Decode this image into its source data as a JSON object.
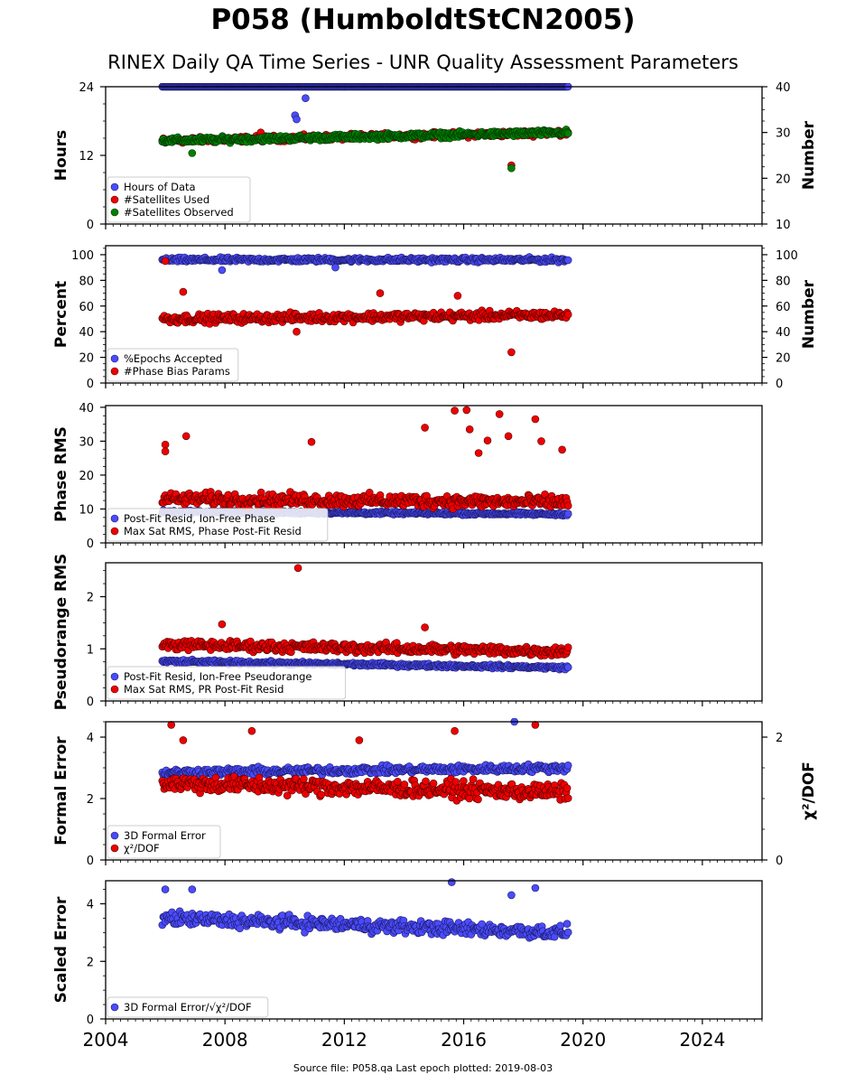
{
  "header": {
    "title": "P058 (HumboldtStCN2005)",
    "subtitle": "RINEX Daily QA Time Series - UNR Quality Assessment Parameters"
  },
  "footer": {
    "source": "Source file: P058.qa Last epoch plotted: 2019-08-03"
  },
  "colors": {
    "blue": "#4b4bff",
    "red": "#ee0000",
    "green": "#008000"
  },
  "chart_data": [
    {
      "type": "scatter",
      "xlim": [
        2004,
        2026
      ],
      "x_ticks": [
        2004,
        2008,
        2012,
        2016,
        2020,
        2024
      ],
      "ylabel": "Hours",
      "ylim": [
        0,
        24
      ],
      "yticks": [
        0,
        12,
        24
      ],
      "ylabel_right": "Number",
      "ylim_right": [
        10,
        40
      ],
      "yticks_right": [
        10,
        20,
        30,
        40
      ],
      "legend_position": "lower-left",
      "series": [
        {
          "name": "Hours of Data",
          "color": "#4b4bff",
          "axis": "left",
          "bands": [
            {
              "x": [
                2005.9,
                2019.5
              ],
              "y": 24,
              "spread": 0
            }
          ],
          "outliers": [
            [
              2010.35,
              19.0
            ],
            [
              2010.4,
              18.3
            ],
            [
              2010.7,
              22.0
            ]
          ]
        },
        {
          "name": "#Satellites Used",
          "color": "#ee0000",
          "axis": "right",
          "bands": [
            {
              "x": [
                2005.9,
                2019.5
              ],
              "y_start": 28.2,
              "y_end": 30.0,
              "spread": 0.9
            }
          ],
          "outliers": [
            [
              2009.2,
              30.0
            ],
            [
              2017.6,
              22.8
            ]
          ]
        },
        {
          "name": "#Satellites Observed",
          "color": "#008000",
          "axis": "right",
          "bands": [
            {
              "x": [
                2005.9,
                2019.5
              ],
              "y_start": 28.2,
              "y_end": 30.0,
              "spread": 0.9
            }
          ],
          "outliers": [
            [
              2006.9,
              25.5
            ],
            [
              2017.6,
              22.2
            ]
          ]
        }
      ]
    },
    {
      "type": "scatter",
      "xlim": [
        2004,
        2026
      ],
      "x_ticks": [
        2004,
        2008,
        2012,
        2016,
        2020,
        2024
      ],
      "ylabel": "Percent",
      "ylim": [
        0,
        107
      ],
      "yticks": [
        0,
        20,
        40,
        60,
        80,
        100
      ],
      "ylabel_right": "Number",
      "ylim_right": [
        0,
        107
      ],
      "yticks_right": [
        0,
        20,
        40,
        60,
        80,
        100
      ],
      "legend_position": "lower-left",
      "series": [
        {
          "name": "%Epochs Accepted",
          "color": "#4b4bff",
          "axis": "left",
          "bands": [
            {
              "x": [
                2005.9,
                2019.5
              ],
              "y_start": 96,
              "y_end": 96,
              "spread": 2.5
            }
          ],
          "outliers": [
            [
              2007.9,
              88
            ],
            [
              2011.7,
              90
            ]
          ]
        },
        {
          "name": "#Phase Bias Params",
          "color": "#ee0000",
          "axis": "right",
          "bands": [
            {
              "x": [
                2005.9,
                2019.5
              ],
              "y_start": 50,
              "y_end": 53,
              "spread": 5
            }
          ],
          "outliers": [
            [
              2006.0,
              95
            ],
            [
              2006.6,
              71
            ],
            [
              2010.4,
              40
            ],
            [
              2013.2,
              70
            ],
            [
              2015.8,
              68
            ],
            [
              2017.6,
              24
            ]
          ]
        }
      ]
    },
    {
      "type": "scatter",
      "xlim": [
        2004,
        2026
      ],
      "x_ticks": [
        2004,
        2008,
        2012,
        2016,
        2020,
        2024
      ],
      "ylabel": "Phase RMS",
      "ylim": [
        0,
        40.5
      ],
      "yticks": [
        0,
        10,
        20,
        30,
        40
      ],
      "legend_position": "lower-left",
      "series": [
        {
          "name": "Post-Fit Resid, Ion-Free Phase",
          "color": "#4b4bff",
          "axis": "left",
          "bands": [
            {
              "x": [
                2005.9,
                2019.5
              ],
              "y_start": 9.2,
              "y_end": 8.5,
              "spread": 0.6
            }
          ],
          "outliers": []
        },
        {
          "name": "Max Sat RMS, Phase Post-Fit Resid",
          "color": "#ee0000",
          "axis": "left",
          "bands": [
            {
              "x": [
                2005.9,
                2019.5
              ],
              "y_start": 13,
              "y_end": 12,
              "spread": 2.8
            }
          ],
          "outliers": [
            [
              2006.0,
              29
            ],
            [
              2006.0,
              27
            ],
            [
              2006.7,
              31.5
            ],
            [
              2010.9,
              29.8
            ],
            [
              2014.7,
              34
            ],
            [
              2015.7,
              39
            ],
            [
              2016.1,
              39.2
            ],
            [
              2016.2,
              33.5
            ],
            [
              2016.5,
              26.5
            ],
            [
              2016.8,
              30.2
            ],
            [
              2017.2,
              38
            ],
            [
              2017.5,
              31.5
            ],
            [
              2018.4,
              36.5
            ],
            [
              2018.6,
              30
            ],
            [
              2019.3,
              27.5
            ]
          ]
        }
      ]
    },
    {
      "type": "scatter",
      "xlim": [
        2004,
        2026
      ],
      "x_ticks": [
        2004,
        2008,
        2012,
        2016,
        2020,
        2024
      ],
      "ylabel": "Pseudorange RMS",
      "ylim": [
        0,
        2.65
      ],
      "yticks": [
        0,
        1,
        2
      ],
      "legend_position": "lower-left",
      "series": [
        {
          "name": "Post-Fit Resid, Ion-Free Pseudorange",
          "color": "#4b4bff",
          "axis": "left",
          "bands": [
            {
              "x": [
                2005.9,
                2019.5
              ],
              "y_start": 0.76,
              "y_end": 0.64,
              "spread": 0.05
            }
          ],
          "outliers": []
        },
        {
          "name": "Max Sat RMS, PR Post-Fit Resid",
          "color": "#ee0000",
          "axis": "left",
          "bands": [
            {
              "x": [
                2005.9,
                2019.5
              ],
              "y_start": 1.08,
              "y_end": 0.95,
              "spread": 0.14
            }
          ],
          "outliers": [
            [
              2010.45,
              2.55
            ],
            [
              2007.9,
              1.47
            ],
            [
              2014.7,
              1.41
            ]
          ]
        }
      ]
    },
    {
      "type": "scatter",
      "xlim": [
        2004,
        2026
      ],
      "x_ticks": [
        2004,
        2008,
        2012,
        2016,
        2020,
        2024
      ],
      "ylabel": "Formal Error",
      "ylim": [
        0,
        4.5
      ],
      "yticks": [
        0,
        2,
        4
      ],
      "ylabel_right": "χ²/DOF",
      "ylim_right": [
        0,
        2.25
      ],
      "yticks_right": [
        0,
        2
      ],
      "legend_position": "lower-left",
      "series": [
        {
          "name": "3D Formal Error",
          "color": "#4b4bff",
          "axis": "left",
          "bands": [
            {
              "x": [
                2005.9,
                2019.5
              ],
              "y_start": 2.85,
              "y_end": 3.0,
              "spread": 0.18
            }
          ],
          "outliers": [
            [
              2017.7,
              4.5
            ]
          ]
        },
        {
          "name": "χ²/DOF",
          "color": "#ee0000",
          "axis": "right",
          "bands": [
            {
              "x": [
                2005.9,
                2019.5
              ],
              "y_start": 1.25,
              "y_end": 1.1,
              "spread": 0.2
            }
          ],
          "outliers": [
            [
              2006.2,
              2.2
            ],
            [
              2006.6,
              1.95
            ],
            [
              2008.9,
              2.1
            ],
            [
              2012.5,
              1.95
            ],
            [
              2015.7,
              2.1
            ],
            [
              2018.4,
              2.2
            ]
          ]
        }
      ]
    },
    {
      "type": "scatter",
      "xlim": [
        2004,
        2026
      ],
      "x_ticks": [
        2004,
        2008,
        2012,
        2016,
        2020,
        2024
      ],
      "ylabel": "Scaled Error",
      "ylim": [
        0,
        4.8
      ],
      "yticks": [
        0,
        2,
        4
      ],
      "legend_position": "lower-left",
      "series": [
        {
          "name": "3D Formal Error/√χ²/DOF",
          "color": "#4b4bff",
          "axis": "left",
          "bands": [
            {
              "x": [
                2005.9,
                2019.5
              ],
              "y_start": 3.5,
              "y_end": 3.0,
              "spread": 0.35
            }
          ],
          "outliers": [
            [
              2006.0,
              4.5
            ],
            [
              2006.9,
              4.5
            ],
            [
              2015.6,
              4.75
            ],
            [
              2018.4,
              4.55
            ],
            [
              2017.6,
              4.3
            ]
          ]
        }
      ]
    }
  ]
}
